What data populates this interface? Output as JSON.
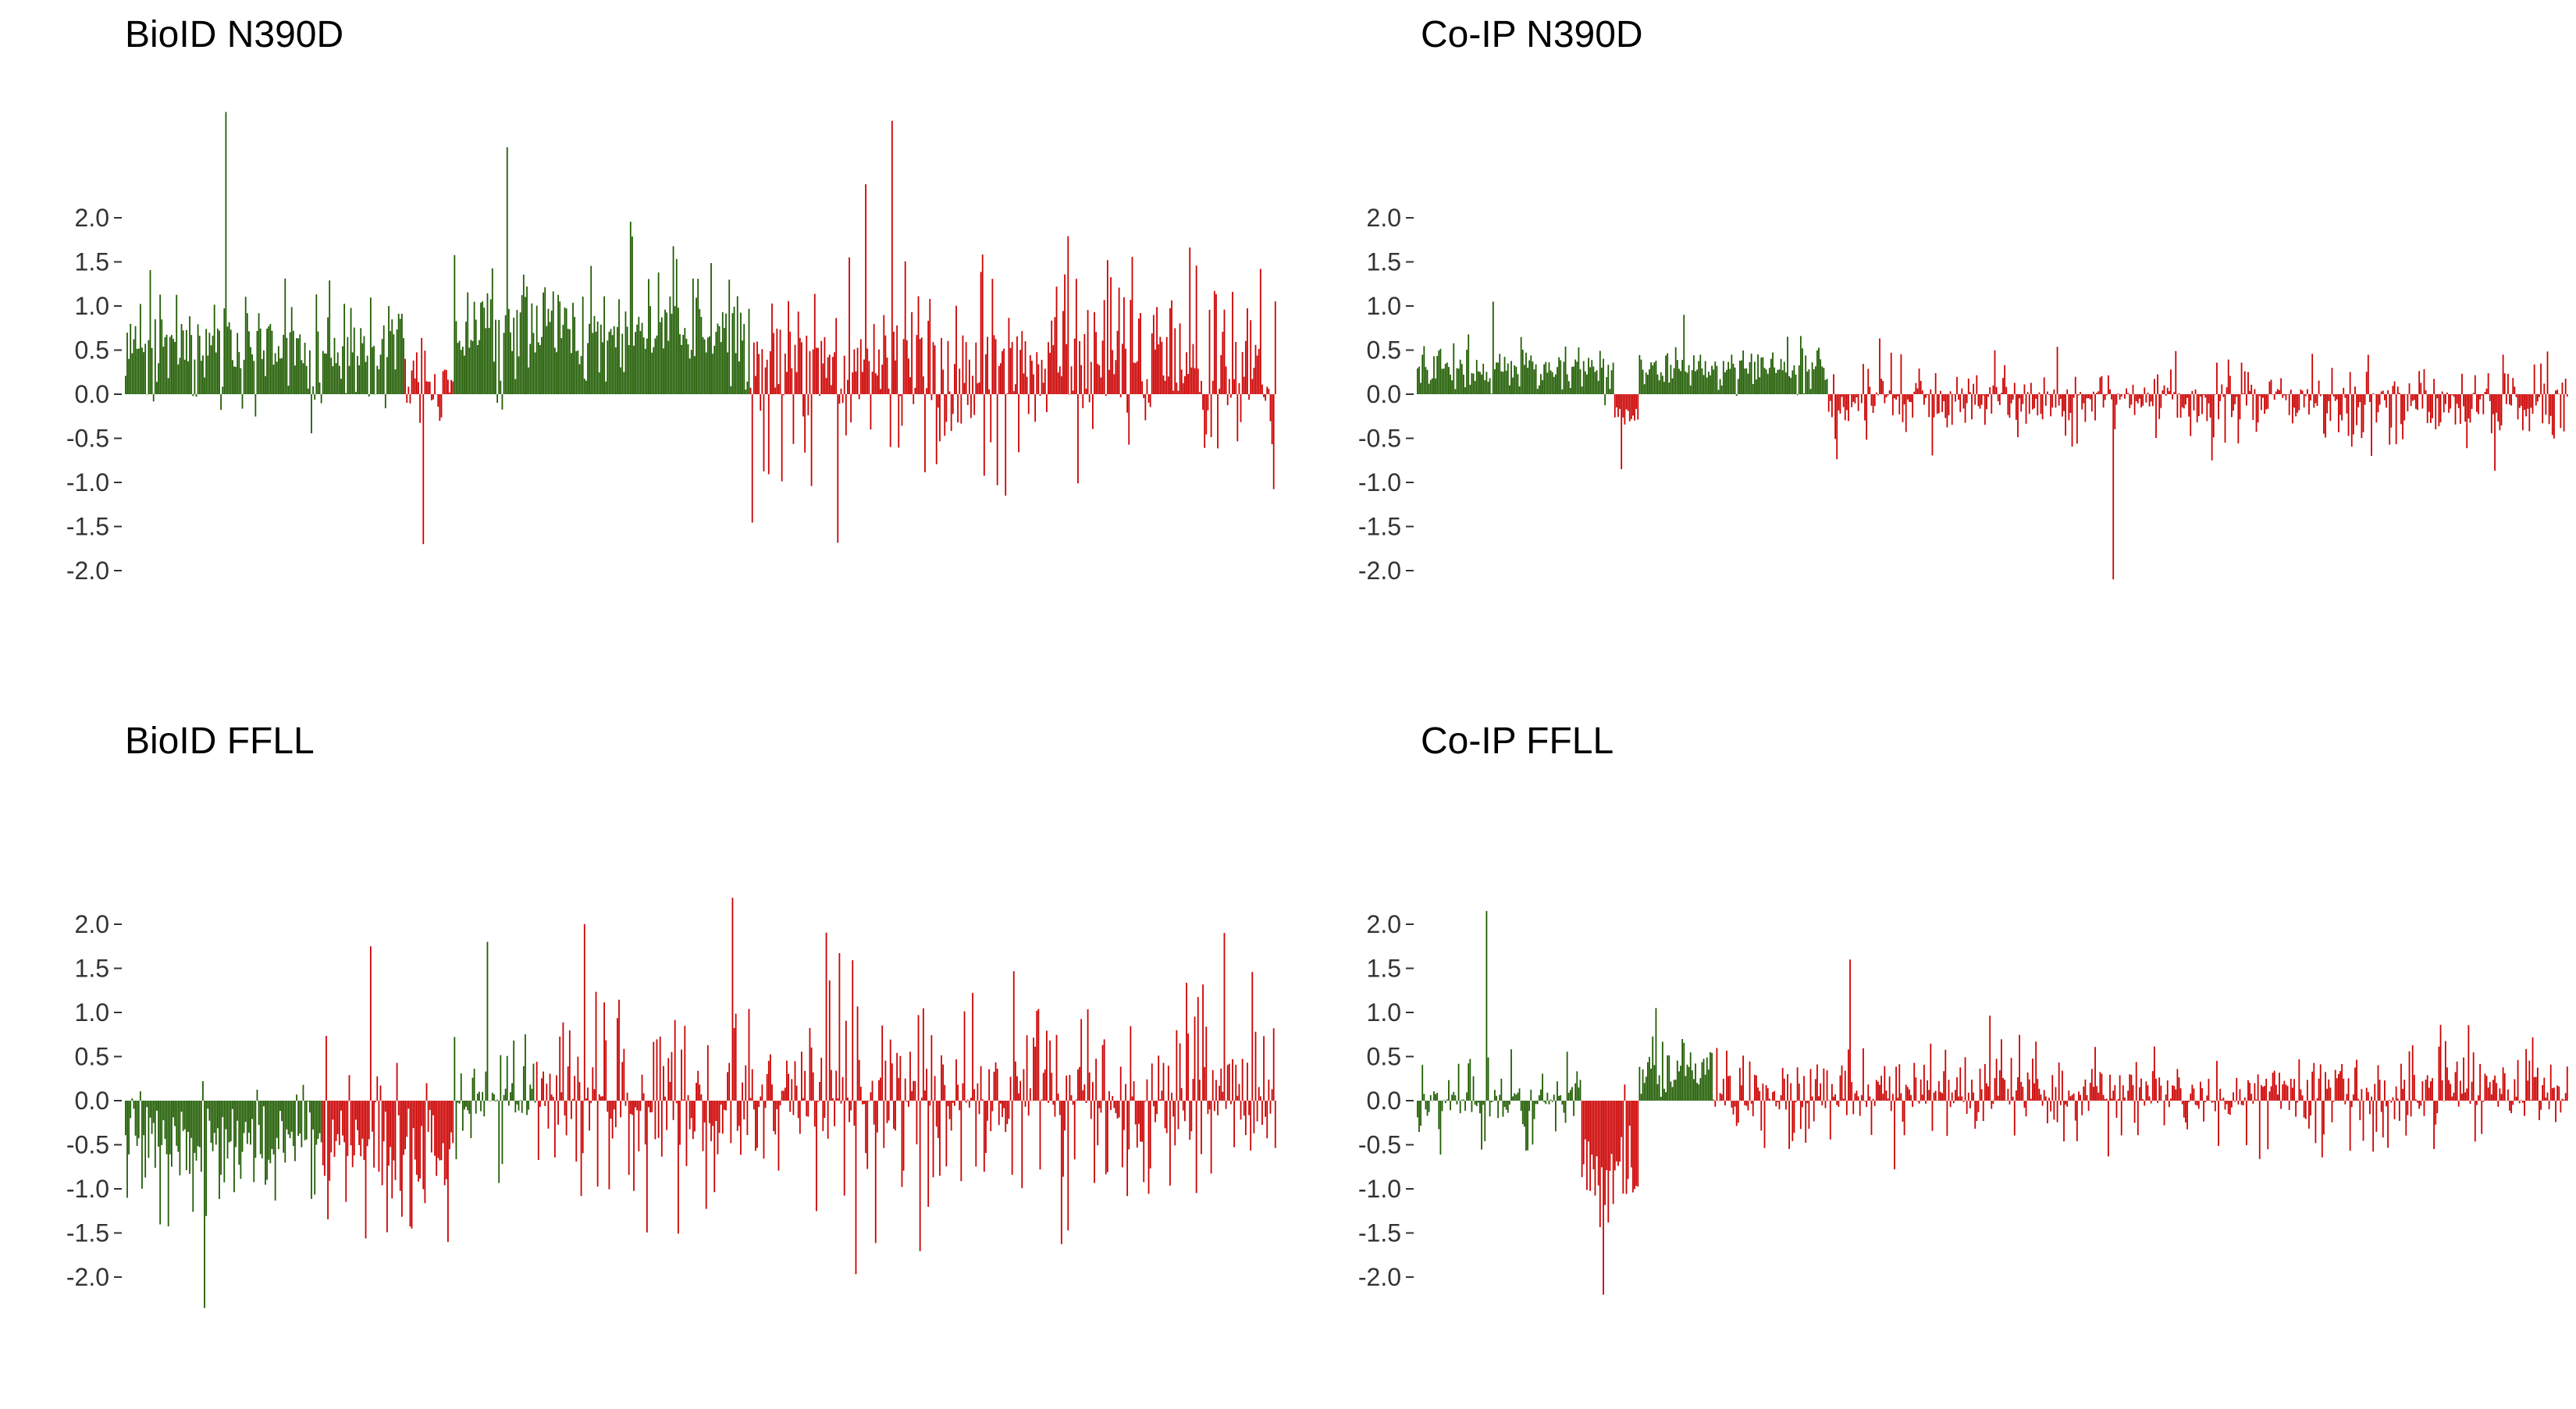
{
  "colors": {
    "positive_group": "#1f5c00",
    "comparison_group": "#cc0000",
    "axis": "#333333",
    "title_text": "#000000"
  },
  "chart_data": [
    {
      "type": "bar",
      "title": "BioID N390D",
      "yticks": [
        "2.0",
        "1.5",
        "1.0",
        "0.5",
        "0.0",
        "-0.5",
        "-1.0",
        "-1.5",
        "-2.0"
      ],
      "ylim": [
        -2.4,
        3.3
      ],
      "n_bars": 700,
      "groups": [
        {
          "color": "#1f5c00",
          "from": 0,
          "to": 170,
          "mean": 0.55,
          "spread": 0.45,
          "peak": 3.2
        },
        {
          "color": "#cc0000",
          "from": 170,
          "to": 200,
          "mean": 0.15,
          "spread": 0.35,
          "peak": -1.7
        },
        {
          "color": "#1f5c00",
          "from": 200,
          "to": 380,
          "mean": 0.75,
          "spread": 0.55,
          "peak": 2.8
        },
        {
          "color": "#cc0000",
          "from": 380,
          "to": 700,
          "mean": 0.35,
          "spread": 0.95,
          "peak": 3.1
        }
      ]
    },
    {
      "type": "bar",
      "title": "Co-IP N390D",
      "yticks": [
        "2.0",
        "1.5",
        "1.0",
        "0.5",
        "0.0",
        "-0.5",
        "-1.0",
        "-1.5",
        "-2.0"
      ],
      "ylim": [
        -2.4,
        3.3
      ],
      "n_bars": 700,
      "groups": [
        {
          "color": "#1f5c00",
          "from": 0,
          "to": 120,
          "mean": 0.3,
          "spread": 0.2,
          "peak": 1.05
        },
        {
          "color": "#cc0000",
          "from": 120,
          "to": 135,
          "mean": -0.25,
          "spread": 0.2,
          "peak": -0.85
        },
        {
          "color": "#1f5c00",
          "from": 135,
          "to": 250,
          "mean": 0.3,
          "spread": 0.18,
          "peak": 0.9
        },
        {
          "color": "#cc0000",
          "from": 250,
          "to": 700,
          "mean": -0.1,
          "spread": 0.35,
          "peak": -2.1
        }
      ]
    },
    {
      "type": "bar",
      "title": "BioID FFLL",
      "yticks": [
        "2.0",
        "1.5",
        "1.0",
        "0.5",
        "0.0",
        "-0.5",
        "-1.0",
        "-1.5",
        "-2.0"
      ],
      "ylim": [
        -2.4,
        2.4
      ],
      "n_bars": 700,
      "groups": [
        {
          "color": "#1f5c00",
          "from": 0,
          "to": 120,
          "mean": -0.5,
          "spread": 0.45,
          "peak": -2.35
        },
        {
          "color": "#cc0000",
          "from": 120,
          "to": 200,
          "mean": -0.6,
          "spread": 0.7,
          "peak": 1.75
        },
        {
          "color": "#1f5c00",
          "from": 200,
          "to": 250,
          "mean": 0.1,
          "spread": 0.5,
          "peak": 1.8
        },
        {
          "color": "#cc0000",
          "from": 250,
          "to": 700,
          "mean": 0.0,
          "spread": 0.9,
          "peak": 2.3
        }
      ]
    },
    {
      "type": "bar",
      "title": "Co-IP FFLL",
      "yticks": [
        "2.0",
        "1.5",
        "1.0",
        "0.5",
        "0.0",
        "-0.5",
        "-1.0",
        "-1.5",
        "-2.0"
      ],
      "ylim": [
        -2.4,
        2.4
      ],
      "n_bars": 700,
      "groups": [
        {
          "color": "#1f5c00",
          "from": 0,
          "to": 100,
          "mean": 0.0,
          "spread": 0.35,
          "peak": 2.15
        },
        {
          "color": "#cc0000",
          "from": 100,
          "to": 135,
          "mean": -0.9,
          "spread": 0.55,
          "peak": -2.2
        },
        {
          "color": "#1f5c00",
          "from": 135,
          "to": 180,
          "mean": 0.35,
          "spread": 0.3,
          "peak": 1.05
        },
        {
          "color": "#cc0000",
          "from": 180,
          "to": 700,
          "mean": 0.1,
          "spread": 0.4,
          "peak": 1.6
        }
      ]
    }
  ]
}
